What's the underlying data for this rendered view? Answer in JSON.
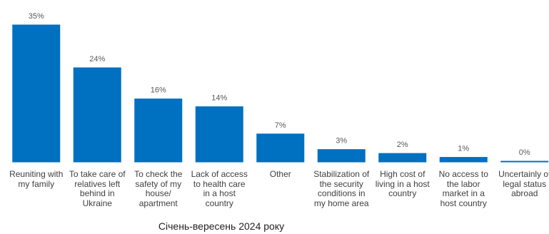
{
  "chart_data": {
    "type": "bar",
    "categories": [
      "Reuniting with my family",
      "To take care of relatives left behind in Ukraine",
      "To check the safety of my house/ apartment",
      "Lack of access to health care in a host country",
      "Other",
      "Stabilization of the security conditions in my home area",
      "High cost of living in a host country",
      "No access to the labor market in a host country",
      "Uncertainly of legal status abroad"
    ],
    "values": [
      35,
      24,
      16,
      14,
      7,
      3,
      2,
      1,
      0
    ],
    "value_labels": [
      "35%",
      "24%",
      "16%",
      "14%",
      "7%",
      "3%",
      "2%",
      "1%",
      "0%"
    ],
    "color": "#0070c0",
    "caption": "Січень-вересень 2024 року"
  }
}
